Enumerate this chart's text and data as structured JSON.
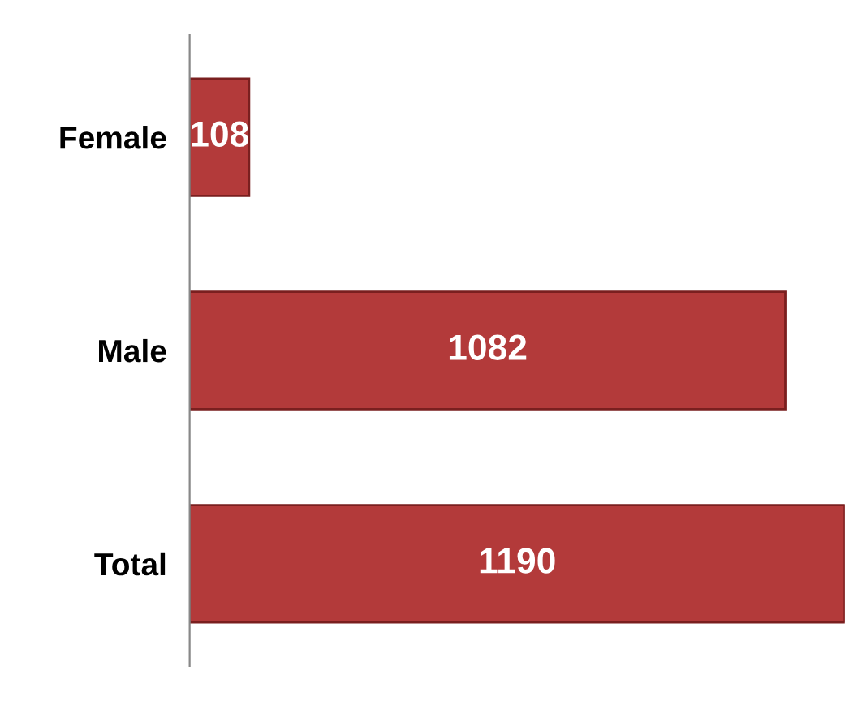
{
  "chart_data": {
    "type": "bar",
    "orientation": "horizontal",
    "categories": [
      "Female",
      "Male",
      "Total"
    ],
    "values": [
      108,
      1082,
      1190
    ],
    "color": "#b33a3a",
    "data_labels": true,
    "grid": false,
    "legend": false
  }
}
